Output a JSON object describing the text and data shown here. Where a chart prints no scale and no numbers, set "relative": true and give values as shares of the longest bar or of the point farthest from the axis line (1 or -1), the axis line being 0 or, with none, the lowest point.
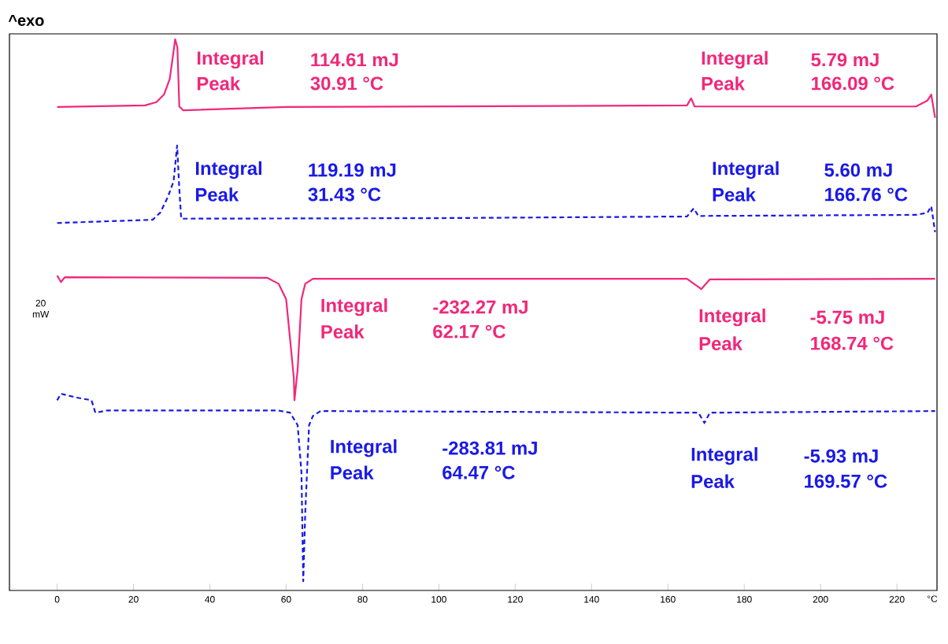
{
  "chart_data": {
    "type": "line",
    "relative": true,
    "ylabel": "^exo",
    "xlabel": "°C",
    "xlim": [
      -12.5,
      230.5
    ],
    "xticks": [
      0,
      20,
      40,
      60,
      80,
      100,
      120,
      140,
      160,
      180,
      200,
      220
    ],
    "tick_labels": "x",
    "grid": false,
    "series": [
      {
        "color": "#f0287a",
        "line_style": "solid",
        "x": [
          0,
          23,
          26,
          28,
          29.5,
          30.5,
          30.91,
          31.5,
          32,
          33,
          60,
          165,
          166.09,
          167,
          200,
          225,
          228,
          229,
          230
        ],
        "values": [
          0.875,
          0.878,
          0.884,
          0.898,
          0.927,
          0.978,
          1,
          0.985,
          0.876,
          0.869,
          0.875,
          0.878,
          0.891,
          0.876,
          0.876,
          0.876,
          0.887,
          0.898,
          0.855
        ]
      },
      {
        "color": "#1a1ae6",
        "line_style": "dashed",
        "x": [
          0,
          25,
          27,
          29,
          30.5,
          31.43,
          32,
          32.5,
          34,
          100,
          165,
          166.76,
          168,
          225,
          228,
          229,
          230
        ],
        "values": [
          0.661,
          0.667,
          0.68,
          0.709,
          0.738,
          0.804,
          0.724,
          0.669,
          0.669,
          0.67,
          0.673,
          0.688,
          0.674,
          0.676,
          0.68,
          0.692,
          0.644
        ]
      },
      {
        "color": "#f0287a",
        "line_style": "solid",
        "x": [
          0,
          1,
          2,
          55,
          58,
          60,
          61,
          62,
          62.17,
          63,
          64,
          65,
          67,
          165,
          168.74,
          171,
          230
        ],
        "values": [
          0.564,
          0.552,
          0.561,
          0.56,
          0.549,
          0.52,
          0.448,
          0.375,
          0.334,
          0.39,
          0.52,
          0.549,
          0.558,
          0.558,
          0.539,
          0.557,
          0.558
        ]
      },
      {
        "color": "#1a1ae6",
        "line_style": "dashed",
        "x": [
          0,
          1,
          5,
          9,
          10,
          13,
          58,
          61,
          63,
          64,
          64.47,
          65,
          66,
          67,
          69,
          168,
          169.57,
          171,
          230
        ],
        "values": [
          0.334,
          0.346,
          0.339,
          0.334,
          0.311,
          0.315,
          0.315,
          0.311,
          0.288,
          0.201,
          0,
          0.128,
          0.288,
          0.305,
          0.314,
          0.311,
          0.292,
          0.311,
          0.314
        ]
      }
    ],
    "annotations": [
      "Integral",
      "114.61 mJ",
      "Peak",
      "30.91 °C",
      "Integral",
      "5.79 mJ",
      "Peak",
      "166.09 °C",
      "Integral",
      "119.19 mJ",
      "Peak",
      "31.43 °C",
      "Integral",
      "5.60 mJ",
      "Peak",
      "166.76 °C",
      "Integral",
      "-232.27 mJ",
      "Peak",
      "62.17 °C",
      "Integral",
      "-5.75 mJ",
      "Peak",
      "168.74 °C",
      "Integral",
      "-283.81 mJ",
      "Peak",
      "64.47 °C",
      "Integral",
      "-5.93 mJ",
      "Peak",
      "169.57 °C",
      "20",
      "mW"
    ]
  }
}
